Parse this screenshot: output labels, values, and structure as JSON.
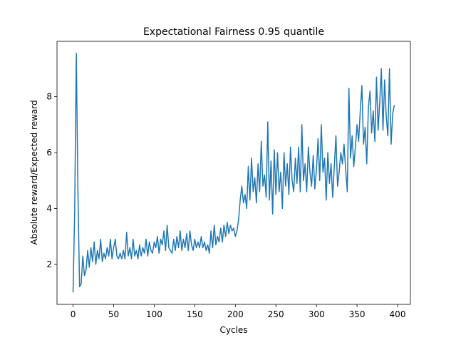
{
  "chart_data": {
    "type": "line",
    "title": "Expectational Fairness 0.95 quantile",
    "x_label": "Cycles",
    "y_label": "Absolute reward/Expected reward",
    "xlim": [
      -19.8,
      415.8
    ],
    "ylim": [
      0.57,
      9.98
    ],
    "xticks": [
      0,
      50,
      100,
      150,
      200,
      250,
      300,
      350,
      400
    ],
    "yticks": [
      2,
      4,
      6,
      8
    ],
    "series": [
      {
        "color": "#1f77b4",
        "x": [
          0,
          2,
          4,
          6,
          8,
          10,
          12,
          14,
          16,
          18,
          20,
          22,
          24,
          26,
          28,
          30,
          32,
          34,
          36,
          38,
          40,
          42,
          44,
          46,
          48,
          50,
          52,
          54,
          56,
          58,
          60,
          62,
          64,
          66,
          68,
          70,
          72,
          74,
          76,
          78,
          80,
          82,
          84,
          86,
          88,
          90,
          92,
          94,
          96,
          98,
          100,
          102,
          104,
          106,
          108,
          110,
          112,
          114,
          116,
          118,
          120,
          122,
          124,
          126,
          128,
          130,
          132,
          134,
          136,
          138,
          140,
          142,
          144,
          146,
          148,
          150,
          152,
          154,
          156,
          158,
          160,
          162,
          164,
          166,
          168,
          170,
          172,
          174,
          176,
          178,
          180,
          182,
          184,
          186,
          188,
          190,
          192,
          194,
          196,
          198,
          200,
          202,
          204,
          206,
          208,
          210,
          212,
          214,
          216,
          218,
          220,
          222,
          224,
          226,
          228,
          230,
          232,
          234,
          236,
          238,
          240,
          242,
          244,
          246,
          248,
          250,
          252,
          254,
          256,
          258,
          260,
          262,
          264,
          266,
          268,
          270,
          272,
          274,
          276,
          278,
          280,
          282,
          284,
          286,
          288,
          290,
          292,
          294,
          296,
          298,
          300,
          302,
          304,
          306,
          308,
          310,
          312,
          314,
          316,
          318,
          320,
          322,
          324,
          326,
          328,
          330,
          332,
          334,
          336,
          338,
          340,
          342,
          344,
          346,
          348,
          350,
          352,
          354,
          356,
          358,
          360,
          362,
          364,
          366,
          368,
          370,
          372,
          374,
          376,
          378,
          380,
          382,
          384,
          386,
          388,
          390,
          392,
          394,
          396
        ],
        "values": [
          1.0,
          3.9,
          9.55,
          4.6,
          1.2,
          1.3,
          2.3,
          1.6,
          1.8,
          2.5,
          1.9,
          2.6,
          2.1,
          2.8,
          2.0,
          2.5,
          2.2,
          2.9,
          2.1,
          2.4,
          2.2,
          2.6,
          2.3,
          2.9,
          2.2,
          2.6,
          2.9,
          2.3,
          2.2,
          2.4,
          2.2,
          2.5,
          2.2,
          3.15,
          2.3,
          2.6,
          2.2,
          2.9,
          2.3,
          2.5,
          2.2,
          2.7,
          2.3,
          2.6,
          2.4,
          2.9,
          2.3,
          2.8,
          2.5,
          2.4,
          2.8,
          2.6,
          3.0,
          2.4,
          2.9,
          2.7,
          3.2,
          2.5,
          3.4,
          2.6,
          2.5,
          2.4,
          2.9,
          2.5,
          3.0,
          2.6,
          3.2,
          2.5,
          2.9,
          2.6,
          3.1,
          2.5,
          3.2,
          2.7,
          2.5,
          2.9,
          2.6,
          2.8,
          2.6,
          3.0,
          2.6,
          2.8,
          2.5,
          2.7,
          2.4,
          3.2,
          2.6,
          3.4,
          2.7,
          3.0,
          2.8,
          3.3,
          2.8,
          3.4,
          3.0,
          3.5,
          3.1,
          3.4,
          3.2,
          3.3,
          3.0,
          3.2,
          3.6,
          4.3,
          4.8,
          4.2,
          4.5,
          4.0,
          5.5,
          4.3,
          5.8,
          4.6,
          5.1,
          4.2,
          5.6,
          4.6,
          6.4,
          4.8,
          5.2,
          4.4,
          7.1,
          4.3,
          5.7,
          3.8,
          6.1,
          4.5,
          6.0,
          4.6,
          5.3,
          4.0,
          6.0,
          4.8,
          5.6,
          4.5,
          6.2,
          5.0,
          4.6,
          5.8,
          4.9,
          6.2,
          4.6,
          7.0,
          5.0,
          5.6,
          4.6,
          6.2,
          5.3,
          4.8,
          5.9,
          4.7,
          5.4,
          6.5,
          5.0,
          7.0,
          5.3,
          5.8,
          4.3,
          6.0,
          4.9,
          5.6,
          4.4,
          5.5,
          6.6,
          4.8,
          5.3,
          6.0,
          5.6,
          6.3,
          5.4,
          4.6,
          8.3,
          5.8,
          6.6,
          5.5,
          6.2,
          7.0,
          6.4,
          7.5,
          8.4,
          6.3,
          6.9,
          5.6,
          7.6,
          8.2,
          6.7,
          7.5,
          6.4,
          8.7,
          6.8,
          7.8,
          9.0,
          6.8,
          8.6,
          7.3,
          6.6,
          9.0,
          6.3,
          7.4,
          7.7
        ]
      }
    ]
  }
}
